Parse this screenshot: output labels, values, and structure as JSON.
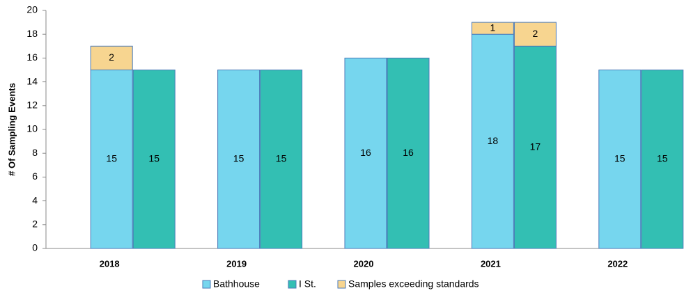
{
  "chart_data": {
    "type": "grouped-stacked-bar",
    "y_label": "# Of Sampling Events",
    "categories": [
      "2018",
      "2019",
      "2020",
      "2021",
      "2022"
    ],
    "series": [
      {
        "name": "Bathhouse",
        "color": "#76d6ee",
        "values": [
          15,
          15,
          16,
          18,
          15
        ]
      },
      {
        "name": "I St.",
        "color": "#33bfb3",
        "values": [
          15,
          15,
          16,
          17,
          15
        ]
      },
      {
        "name": "Samples exceeding standards",
        "color": "#f7d590",
        "values": [
          [
            2,
            null
          ],
          [
            null,
            null
          ],
          [
            null,
            null
          ],
          [
            1,
            2
          ],
          [
            null,
            null
          ]
        ]
      }
    ],
    "ylim": [
      0,
      20
    ],
    "yticks": [
      0,
      2,
      4,
      6,
      8,
      10,
      12,
      14,
      16,
      18,
      20
    ]
  }
}
